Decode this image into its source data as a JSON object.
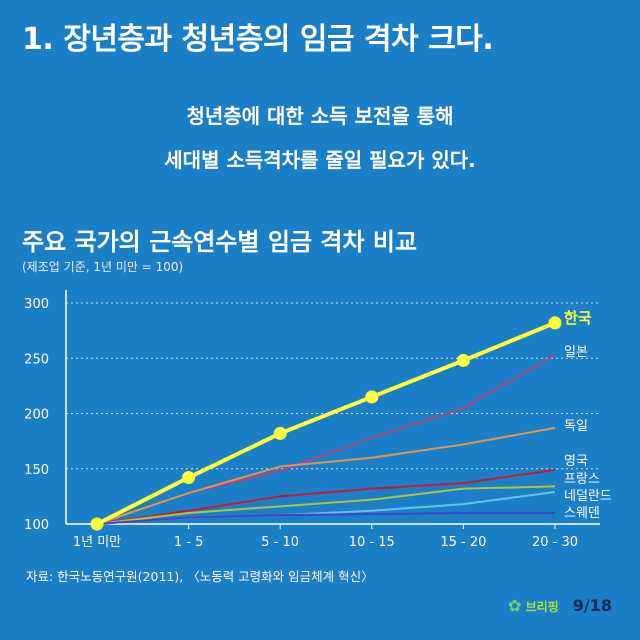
{
  "headline": "1. 장년층과 청년층의 임금 격차 크다.",
  "subtitle_line1": "청년층에 대한 소득 보전을 통해",
  "subtitle_line2": "세대별 소득격차를 줄일 필요가 있다.",
  "source": "자료: 한국노동연구원(2011), 〈노동력 고령화와 임금체계 혁신〉",
  "logo_text": "브리핑",
  "page_indicator": "9/18",
  "chart_data": {
    "type": "line",
    "title": "주요 국가의 근속연수별 임금 격차 비교",
    "subtitle": "(제조업 기준, 1년 미만 = 100)",
    "categories": [
      "1년 미만",
      "1 - 5",
      "5 - 10",
      "10 - 15",
      "15 - 20",
      "20 - 30"
    ],
    "y_ticks": [
      100,
      150,
      200,
      250,
      300
    ],
    "ylim": [
      100,
      300
    ],
    "grid": true,
    "series": [
      {
        "name": "한국",
        "color": "#ffff3a",
        "highlight": true,
        "values": [
          100,
          142,
          182,
          215,
          248,
          282
        ]
      },
      {
        "name": "일본",
        "color": "#b4437f",
        "values": [
          100,
          128,
          148,
          178,
          205,
          253
        ]
      },
      {
        "name": "독일",
        "color": "#e0964a",
        "values": [
          100,
          128,
          152,
          160,
          172,
          187
        ]
      },
      {
        "name": "영국",
        "color": "#c11f2e",
        "values": [
          100,
          112,
          125,
          132,
          137,
          149
        ]
      },
      {
        "name": "프랑스",
        "color": "#a8c83a",
        "values": [
          100,
          110,
          116,
          122,
          132,
          134
        ]
      },
      {
        "name": "네덜란드",
        "color": "#5fc5e6",
        "values": [
          100,
          106,
          108,
          112,
          118,
          129
        ]
      },
      {
        "name": "스웨덴",
        "color": "#4a3fc8",
        "values": [
          100,
          106,
          108,
          109,
          110,
          110
        ]
      }
    ]
  }
}
